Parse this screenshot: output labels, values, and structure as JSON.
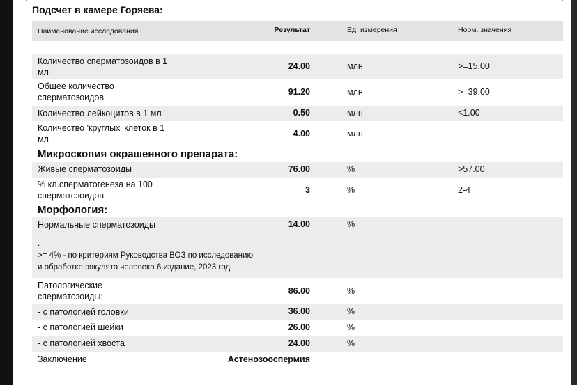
{
  "title": "Подсчет в камере Горяева:",
  "header": {
    "name": "Наименование исследования",
    "result": "Результат",
    "unit": "Ед. измерения",
    "norm": "Норм. значения"
  },
  "items": [
    {
      "name": "Количество сперматозоидов в 1 мл",
      "result": "24.00",
      "unit": "млн",
      "norm": ">=15.00"
    },
    {
      "name": "Общее количество сперматозоидов",
      "result": "91.20",
      "unit": "млн",
      "norm": ">=39.00"
    },
    {
      "name": "Количество лейкоцитов в 1 мл",
      "result": "0.50",
      "unit": "млн",
      "norm": "<1.00"
    },
    {
      "name": "Количество 'круглых' клеток в 1 мл",
      "result": "4.00",
      "unit": "млн"
    },
    {
      "heading": "Микроскопия окрашенного препарата:"
    },
    {
      "name": "Живые сперматозоиды",
      "result": "76.00",
      "unit": "%",
      "norm": ">57.00"
    },
    {
      "name": "% кл.сперматогенеза на 100 сперматозоидов",
      "result": "3",
      "unit": "%",
      "norm": "2-4"
    },
    {
      "heading": "Морфология:"
    },
    {
      "name": "Нормальные сперматозоиды",
      "result": "14.00",
      "unit": "%",
      "note": [
        ".",
        ">= 4% - по критериям Руководства ВОЗ по исследованию",
        "и обработке эякулята человека 6 издание, 2023 год."
      ]
    },
    {
      "name": "Патологические сперматозоиды:",
      "result": "86.00",
      "unit": "%"
    },
    {
      "name": "- с патологией головки",
      "result": "36.00",
      "unit": "%"
    },
    {
      "name": "- с патологией шейки",
      "result": "26.00",
      "unit": "%"
    },
    {
      "name": "- с патологией хвоста",
      "result": "24.00",
      "unit": "%"
    },
    {
      "name": "Заключение",
      "result": "Астенозооспермия"
    }
  ]
}
